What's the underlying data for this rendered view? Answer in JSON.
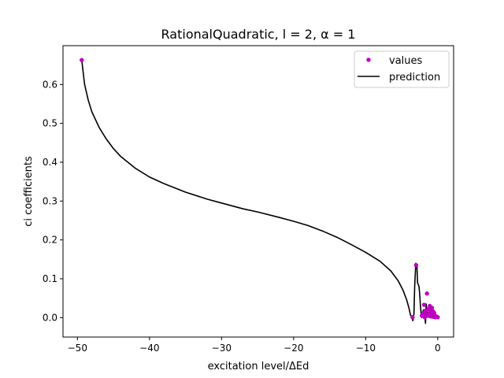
{
  "chart_data": {
    "type": "scatter",
    "title": "RationalQuadratic, l = 2, α = 1",
    "xlabel": "excitation level/ΔEd",
    "ylabel": "ci coefficients",
    "xlim": [
      -52,
      2.2
    ],
    "ylim": [
      -0.05,
      0.7
    ],
    "xticks": [
      -50,
      -40,
      -30,
      -20,
      -10,
      0
    ],
    "xtick_labels": [
      "−50",
      "−40",
      "−30",
      "−20",
      "−10",
      "0"
    ],
    "yticks": [
      0.0,
      0.1,
      0.2,
      0.3,
      0.4,
      0.5,
      0.6
    ],
    "ytick_labels": [
      "0.0",
      "0.1",
      "0.2",
      "0.3",
      "0.4",
      "0.5",
      "0.6"
    ],
    "grid": false,
    "legend_position": "top-right",
    "series": [
      {
        "name": "values",
        "kind": "scatter",
        "color": "#bf00bf",
        "points": [
          [
            -49.4,
            0.663
          ],
          [
            -3.5,
            0.001
          ],
          [
            -3.0,
            0.135
          ],
          [
            -2.0,
            0.012
          ],
          [
            -1.9,
            0.033
          ],
          [
            -1.8,
            0.001
          ],
          [
            -1.7,
            0.018
          ],
          [
            -1.5,
            0.062
          ],
          [
            -1.4,
            0.005
          ],
          [
            -1.3,
            0.022
          ],
          [
            -1.2,
            0.01
          ],
          [
            -1.1,
            0.03
          ],
          [
            -1.0,
            0.003
          ],
          [
            -0.9,
            0.015
          ],
          [
            -0.8,
            0.025
          ],
          [
            -0.7,
            0.008
          ],
          [
            -0.6,
            0.002
          ],
          [
            -0.5,
            0.012
          ],
          [
            -0.4,
            0.005
          ],
          [
            -0.3,
            0.001
          ],
          [
            -0.2,
            0.003
          ],
          [
            -0.1,
            0.002
          ],
          [
            0.0,
            0.001
          ],
          [
            -2.2,
            0.005
          ],
          [
            -1.6,
            0.008
          ],
          [
            -0.95,
            0.02
          ],
          [
            -0.65,
            0.016
          ]
        ]
      },
      {
        "name": "prediction",
        "kind": "line",
        "color": "#000000",
        "points": [
          [
            -49.4,
            0.663
          ],
          [
            -49.0,
            0.6
          ],
          [
            -48.5,
            0.56
          ],
          [
            -48.0,
            0.53
          ],
          [
            -47.0,
            0.49
          ],
          [
            -46.0,
            0.46
          ],
          [
            -45.0,
            0.435
          ],
          [
            -44.0,
            0.415
          ],
          [
            -42.0,
            0.385
          ],
          [
            -40.0,
            0.362
          ],
          [
            -38.0,
            0.345
          ],
          [
            -35.0,
            0.323
          ],
          [
            -32.0,
            0.305
          ],
          [
            -30.0,
            0.295
          ],
          [
            -27.0,
            0.28
          ],
          [
            -25.0,
            0.272
          ],
          [
            -22.0,
            0.258
          ],
          [
            -20.0,
            0.248
          ],
          [
            -18.0,
            0.237
          ],
          [
            -16.0,
            0.223
          ],
          [
            -14.0,
            0.207
          ],
          [
            -12.0,
            0.188
          ],
          [
            -10.0,
            0.168
          ],
          [
            -8.0,
            0.145
          ],
          [
            -6.5,
            0.12
          ],
          [
            -5.5,
            0.095
          ],
          [
            -4.8,
            0.07
          ],
          [
            -4.3,
            0.045
          ],
          [
            -4.0,
            0.025
          ],
          [
            -3.8,
            0.008
          ],
          [
            -3.6,
            0.0
          ],
          [
            -3.45,
            -0.008
          ],
          [
            -3.3,
            0.01
          ],
          [
            -3.2,
            0.08
          ],
          [
            -3.05,
            0.14
          ],
          [
            -2.9,
            0.135
          ],
          [
            -2.8,
            0.09
          ],
          [
            -2.6,
            0.08
          ],
          [
            -2.5,
            0.06
          ],
          [
            -2.4,
            0.03
          ],
          [
            -2.3,
            0.01
          ],
          [
            -2.2,
            0.0
          ],
          [
            -2.1,
            0.008
          ],
          [
            -2.0,
            0.02
          ],
          [
            -1.9,
            0.012
          ],
          [
            -1.8,
            0.008
          ],
          [
            -1.7,
            -0.015
          ],
          [
            -1.6,
            0.035
          ],
          [
            -1.5,
            0.01
          ],
          [
            -1.3,
            0.015
          ],
          [
            -1.1,
            0.003
          ],
          [
            -0.9,
            0.008
          ],
          [
            -0.7,
            0.002
          ],
          [
            -0.5,
            0.006
          ],
          [
            -0.3,
            0.002
          ],
          [
            0.0,
            0.001
          ]
        ]
      }
    ]
  }
}
